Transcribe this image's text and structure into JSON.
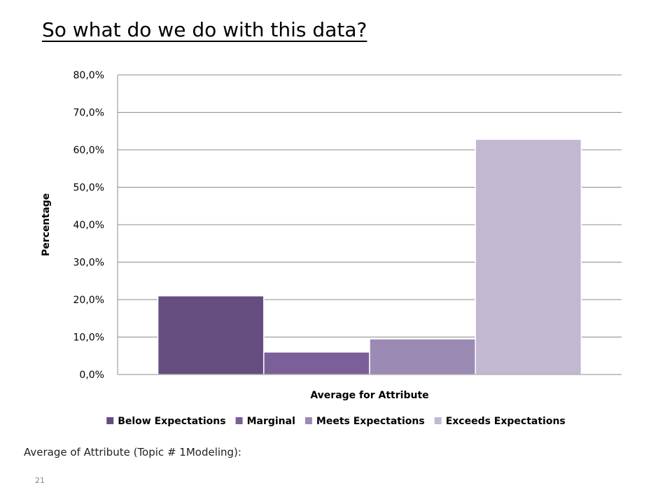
{
  "slide": {
    "title": "So what do we do with this data?",
    "subtitle": "Average of Attribute (Topic # 1Modeling):",
    "page_number": "21"
  },
  "chart_data": {
    "type": "bar",
    "title": "",
    "xlabel": "Average for Attribute",
    "ylabel": "Percentage",
    "ylim": [
      0,
      80
    ],
    "y_ticks": [
      "0,0%",
      "10,0%",
      "20,0%",
      "30,0%",
      "40,0%",
      "50,0%",
      "60,0%",
      "70,0%",
      "80,0%"
    ],
    "grid": true,
    "legend_position": "bottom",
    "categories": [
      "Average for Attribute"
    ],
    "series": [
      {
        "name": "Below Expectations",
        "values": [
          21.0
        ],
        "color": "#654e7f"
      },
      {
        "name": "Marginal",
        "values": [
          6.0
        ],
        "color": "#7a5f99"
      },
      {
        "name": "Meets Expectations",
        "values": [
          9.5
        ],
        "color": "#9b8ab4"
      },
      {
        "name": "Exceeds Expectations",
        "values": [
          62.8
        ],
        "color": "#c2b8d1"
      }
    ]
  }
}
